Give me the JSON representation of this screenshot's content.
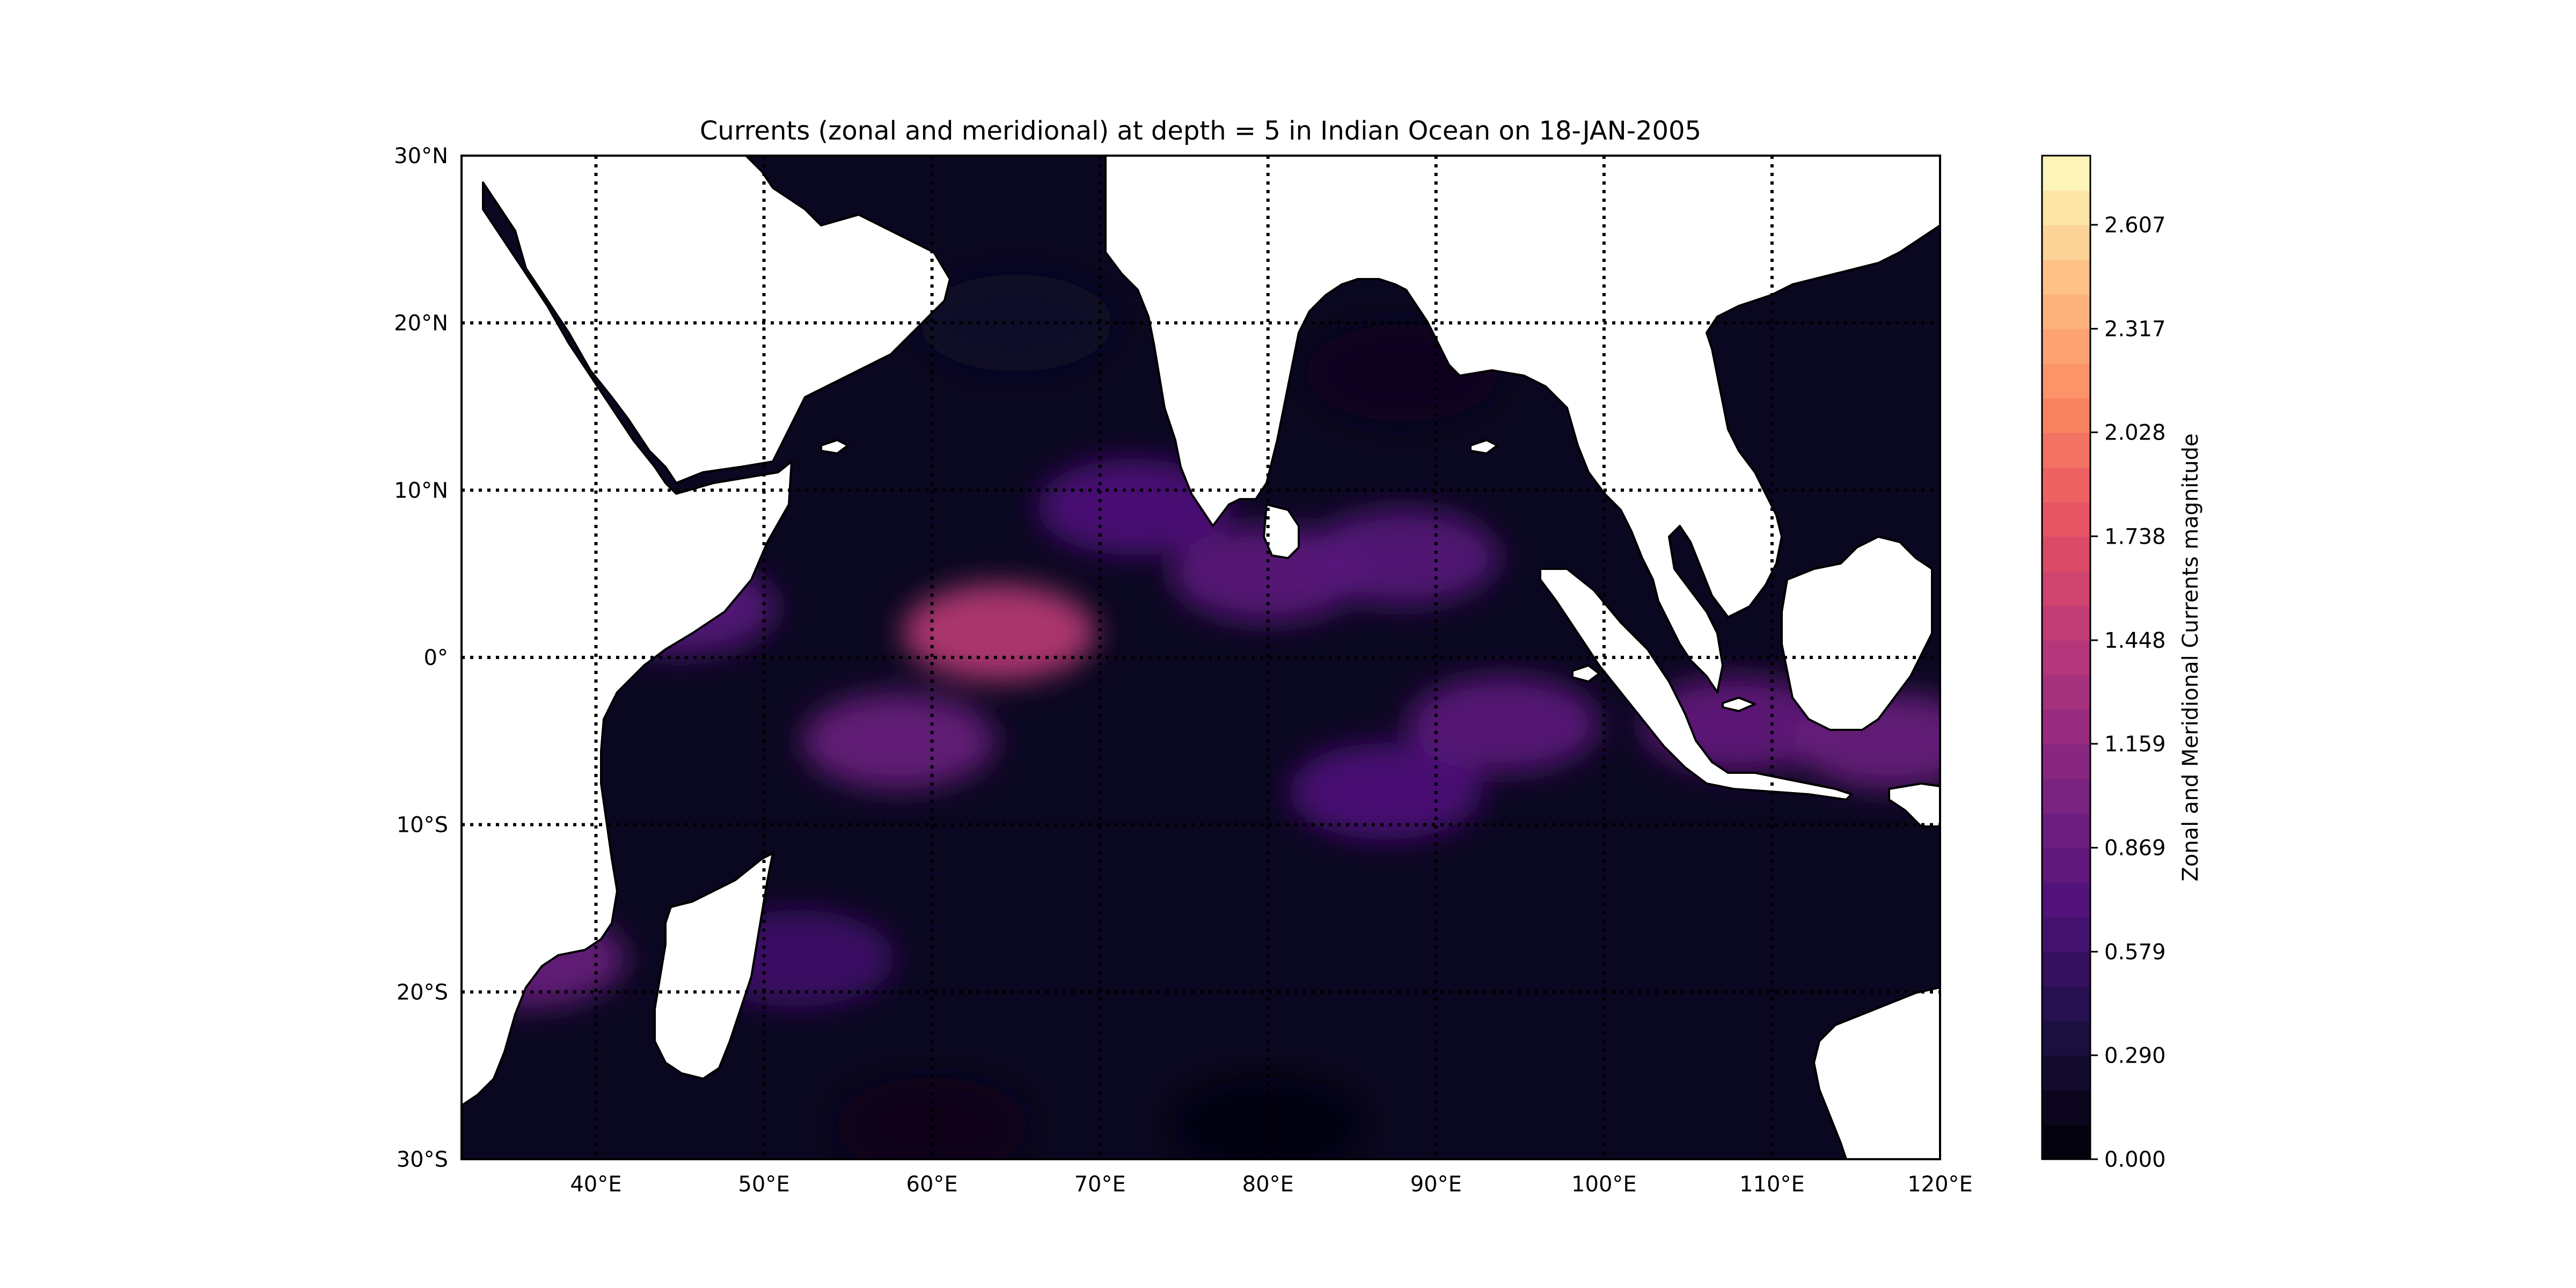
{
  "title": "Currents (zonal and meridional) at depth = 5 in Indian Ocean on 18-JAN-2005",
  "map": {
    "lon_range": [
      32,
      120
    ],
    "lat_range": [
      -30,
      30
    ],
    "projection": "PlateCarree",
    "gridlines": "dotted",
    "lon_ticks": [
      {
        "value": 40,
        "label": "40°E"
      },
      {
        "value": 50,
        "label": "50°E"
      },
      {
        "value": 60,
        "label": "60°E"
      },
      {
        "value": 70,
        "label": "70°E"
      },
      {
        "value": 80,
        "label": "80°E"
      },
      {
        "value": 90,
        "label": "90°E"
      },
      {
        "value": 100,
        "label": "100°E"
      },
      {
        "value": 110,
        "label": "110°E"
      },
      {
        "value": 120,
        "label": "120°E"
      }
    ],
    "lat_ticks": [
      {
        "value": 30,
        "label": "30°N"
      },
      {
        "value": 20,
        "label": "20°N"
      },
      {
        "value": 10,
        "label": "10°N"
      },
      {
        "value": 0,
        "label": "0°"
      },
      {
        "value": -10,
        "label": "10°S"
      },
      {
        "value": -20,
        "label": "20°S"
      },
      {
        "value": -30,
        "label": "30°S"
      }
    ],
    "land_color": "#ffffff",
    "coast_color": "#000000",
    "colormap": "magma"
  },
  "colorbar": {
    "label": "Zonal and Meridional Currents magnitude",
    "range": [
      0.0,
      2.8
    ],
    "ticks": [
      {
        "value": 0.0,
        "label": "0.000"
      },
      {
        "value": 0.29,
        "label": "0.290"
      },
      {
        "value": 0.579,
        "label": "0.579"
      },
      {
        "value": 0.869,
        "label": "0.869"
      },
      {
        "value": 1.159,
        "label": "1.159"
      },
      {
        "value": 1.448,
        "label": "1.448"
      },
      {
        "value": 1.738,
        "label": "1.738"
      },
      {
        "value": 2.028,
        "label": "2.028"
      },
      {
        "value": 2.317,
        "label": "2.317"
      },
      {
        "value": 2.607,
        "label": "2.607"
      }
    ],
    "levels": 29
  },
  "chart_data": {
    "type": "heatmap",
    "title": "Currents (zonal and meridional) at depth = 5 in Indian Ocean on 18-JAN-2005",
    "xlabel": "",
    "ylabel": "",
    "xlim": [
      32,
      120
    ],
    "ylim": [
      -30,
      30
    ],
    "zlabel": "Zonal and Meridional Currents magnitude",
    "zlim": [
      0.0,
      2.8
    ],
    "colorbar_ticks": [
      0.0,
      0.29,
      0.579,
      0.869,
      1.159,
      1.448,
      1.738,
      2.028,
      2.317,
      2.607
    ],
    "notable_features": [
      {
        "lon": 64,
        "lat": 1.5,
        "value": 1.45
      },
      {
        "lon": 58,
        "lat": -5,
        "value": 0.9
      },
      {
        "lon": 80,
        "lat": 5,
        "value": 0.8
      },
      {
        "lon": 88,
        "lat": 6,
        "value": 0.75
      },
      {
        "lon": 72,
        "lat": 9,
        "value": 0.7
      },
      {
        "lon": 45,
        "lat": 3,
        "value": 0.75
      },
      {
        "lon": 94,
        "lat": -4,
        "value": 0.8
      },
      {
        "lon": 87,
        "lat": -8,
        "value": 0.7
      },
      {
        "lon": 108,
        "lat": -4,
        "value": 0.85
      },
      {
        "lon": 117,
        "lat": -5,
        "value": 0.9
      },
      {
        "lon": 36,
        "lat": -18,
        "value": 0.9
      },
      {
        "lon": 52,
        "lat": -18,
        "value": 0.6
      },
      {
        "lon": 60,
        "lat": -28,
        "value": 0.1
      },
      {
        "lon": 80,
        "lat": -28,
        "value": 0.08
      },
      {
        "lon": 65,
        "lat": 20,
        "value": 0.2
      },
      {
        "lon": 88,
        "lat": 17,
        "value": 0.15
      }
    ]
  }
}
